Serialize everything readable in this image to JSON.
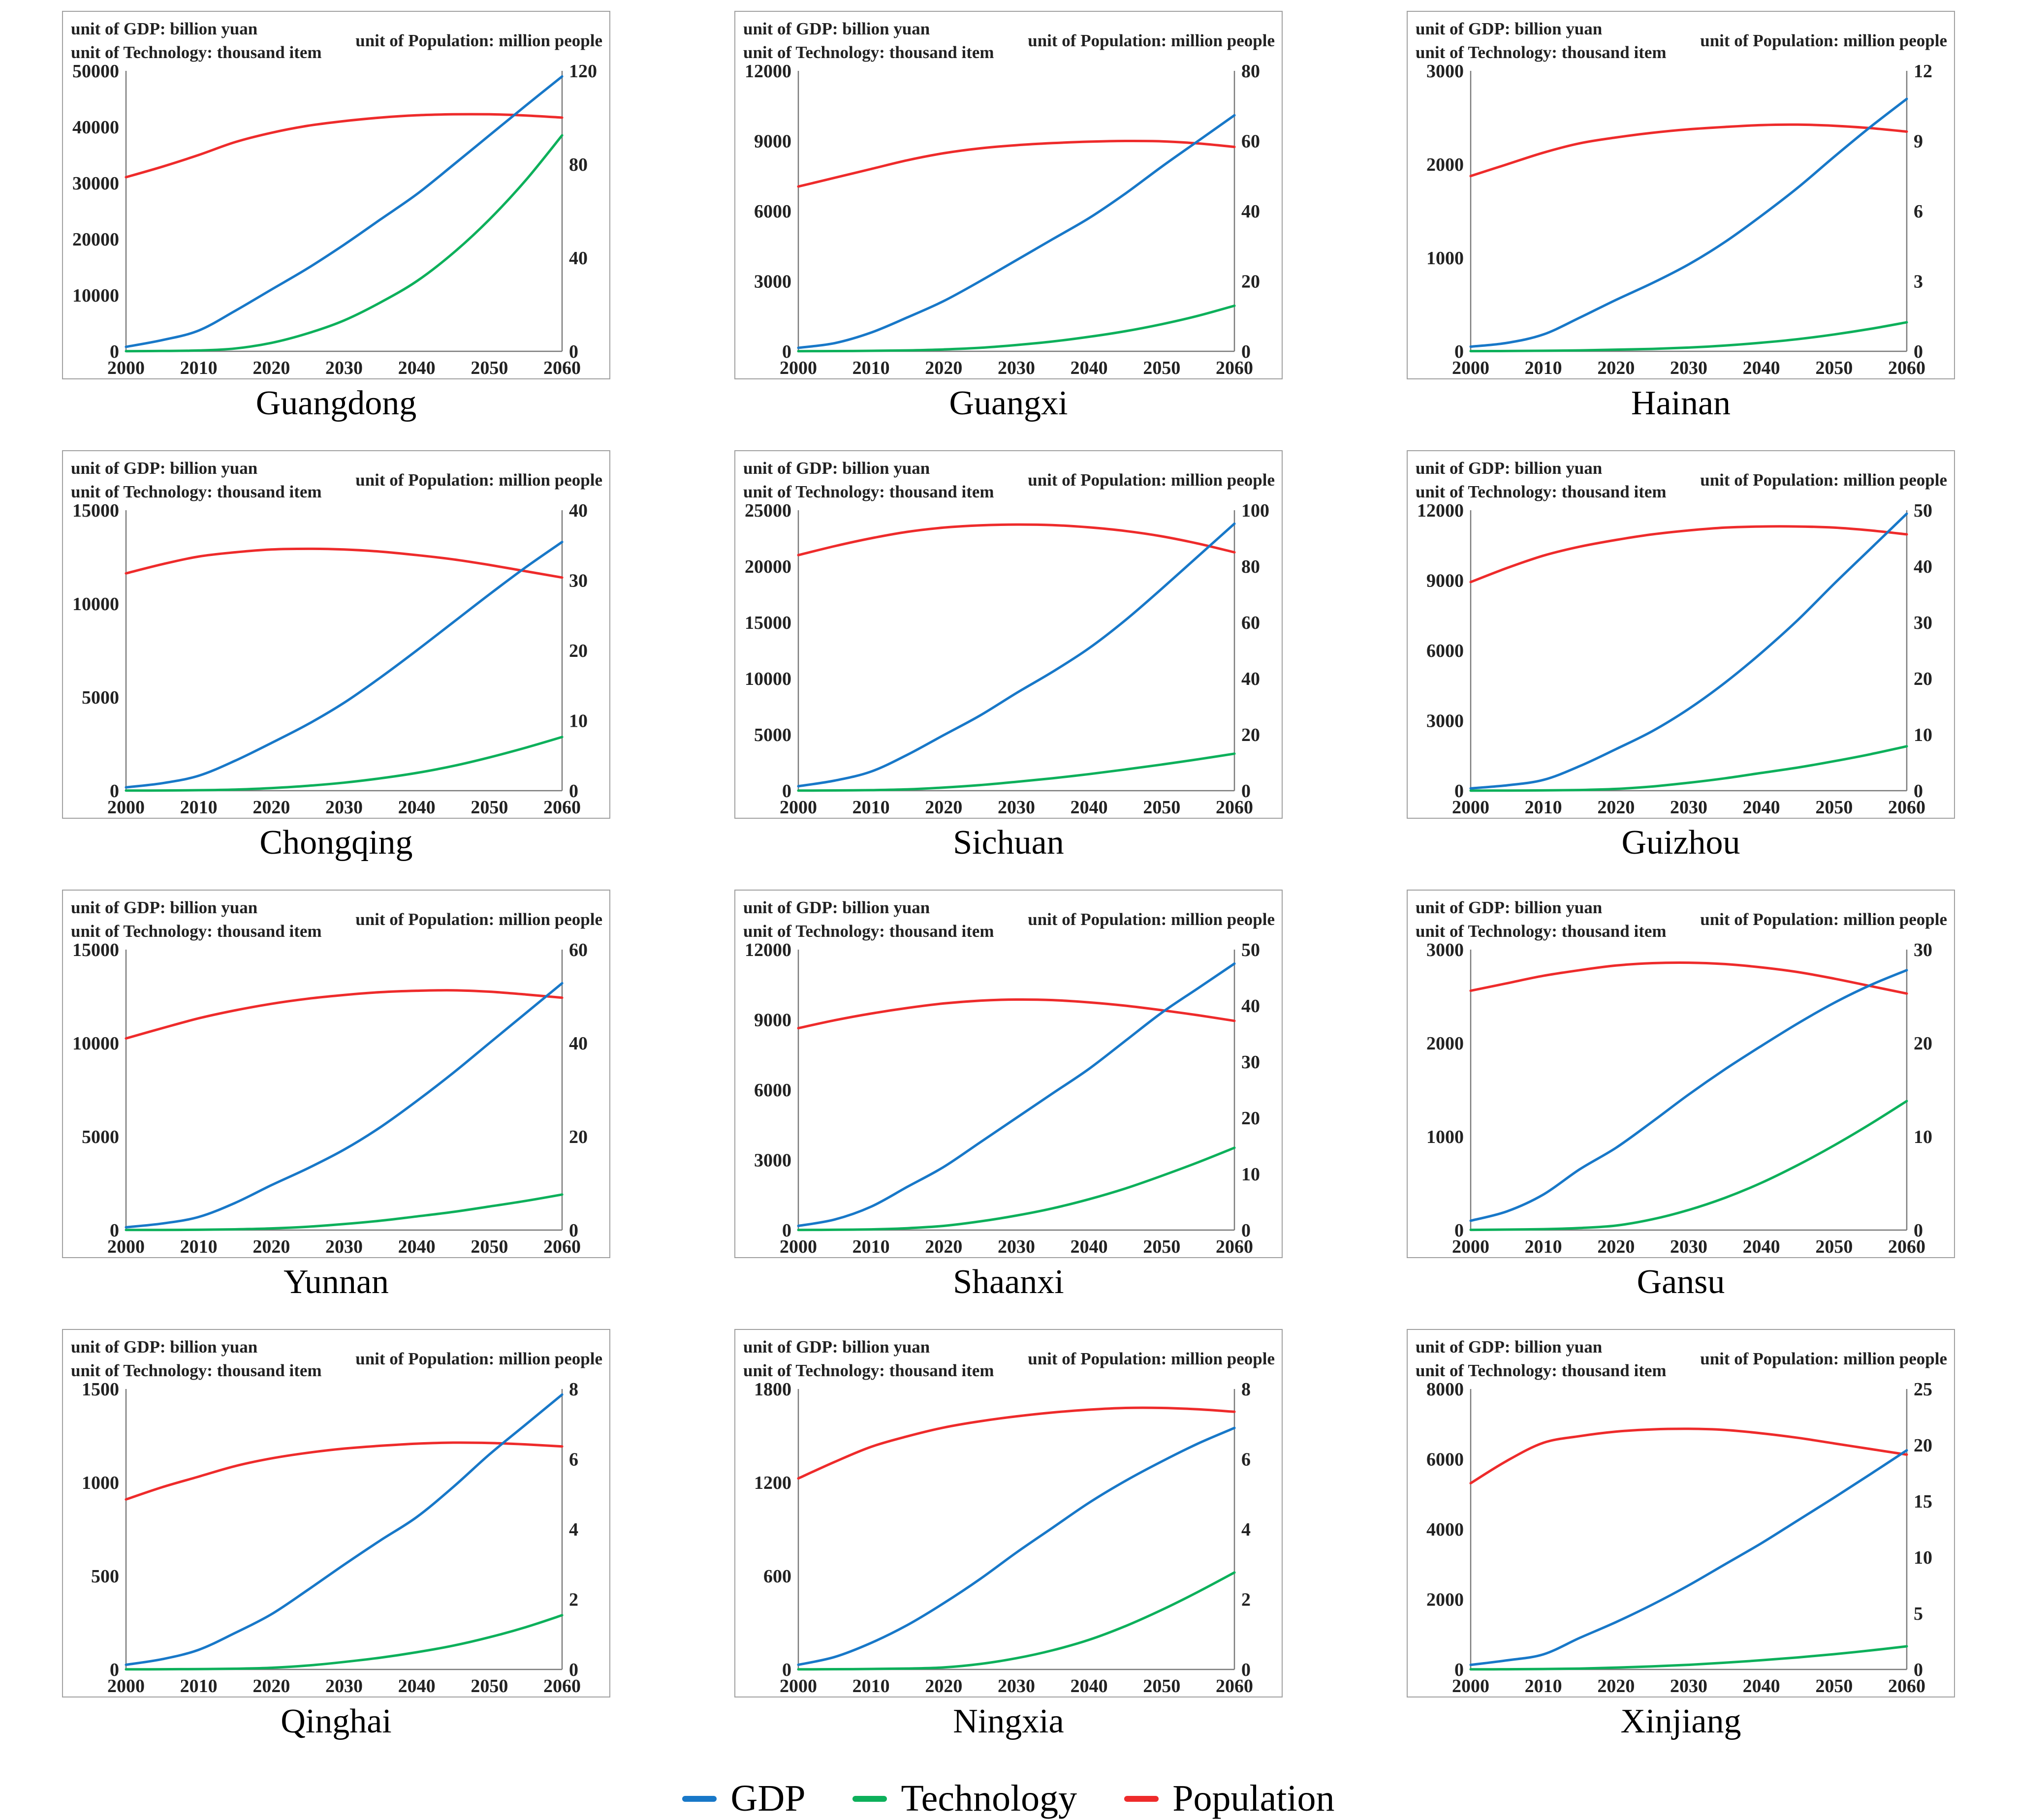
{
  "figure": {
    "description": "Simulated GDP, Technology and Population trajectories 2000-2060 for twelve Chinese provinces"
  },
  "units": {
    "gdp": "unit of GDP: billion yuan",
    "technology": "unit of Technology: thousand item",
    "population": "unit of Population:  million people"
  },
  "colors": {
    "gdp": "#1878c8",
    "technology": "#0db05b",
    "population": "#ee2b2b",
    "axis": "#7a7a7a",
    "box_border": "#a0a0a0",
    "text": "#222222"
  },
  "legend": {
    "items": [
      {
        "label": "GDP",
        "color": "#1878c8"
      },
      {
        "label": "Technology",
        "color": "#0db05b"
      },
      {
        "label": "Population",
        "color": "#ee2b2b"
      }
    ]
  },
  "x_ticks": [
    2000,
    2010,
    2020,
    2030,
    2040,
    2050,
    2060
  ],
  "years_sampled": [
    2000,
    2005,
    2010,
    2015,
    2020,
    2025,
    2030,
    2035,
    2040,
    2045,
    2050,
    2055,
    2060
  ],
  "chart_data": [
    {
      "type": "line",
      "title": "Guangdong",
      "left_axis": {
        "ticks": [
          0,
          10000,
          20000,
          30000,
          40000,
          50000
        ],
        "max": 50000
      },
      "right_axis": {
        "ticks": [
          0,
          40,
          80,
          120
        ],
        "max": 120
      },
      "series": {
        "GDP": [
          800,
          2000,
          3700,
          7200,
          11000,
          14800,
          19000,
          23500,
          28000,
          33200,
          38500,
          43800,
          49000
        ],
        "Technology": [
          30,
          60,
          150,
          500,
          1500,
          3200,
          5500,
          8700,
          12500,
          17500,
          23500,
          30500,
          38500
        ],
        "Population": [
          74.5,
          79,
          84,
          89.5,
          93.5,
          96.5,
          98.5,
          100,
          101,
          101.4,
          101.4,
          100.9,
          100
        ]
      }
    },
    {
      "type": "line",
      "title": "Guangxi",
      "left_axis": {
        "ticks": [
          0,
          3000,
          6000,
          9000,
          12000
        ],
        "max": 12000
      },
      "right_axis": {
        "ticks": [
          0,
          20,
          40,
          60,
          80
        ],
        "max": 80
      },
      "series": {
        "GDP": [
          150,
          350,
          800,
          1450,
          2150,
          3000,
          3900,
          4800,
          5700,
          6750,
          7900,
          9000,
          10100
        ],
        "Technology": [
          5,
          10,
          20,
          40,
          80,
          150,
          270,
          420,
          620,
          860,
          1160,
          1520,
          1950
        ],
        "Population": [
          47,
          49.5,
          52,
          54.5,
          56.5,
          57.9,
          58.8,
          59.4,
          59.8,
          60,
          59.9,
          59.3,
          58.3
        ]
      }
    },
    {
      "type": "line",
      "title": "Hainan",
      "left_axis": {
        "ticks": [
          0,
          1000,
          2000,
          3000
        ],
        "max": 3000
      },
      "right_axis": {
        "ticks": [
          0,
          3,
          6,
          9,
          12
        ],
        "max": 12
      },
      "series": {
        "GDP": [
          50,
          90,
          180,
          360,
          550,
          730,
          930,
          1170,
          1450,
          1750,
          2080,
          2400,
          2700
        ],
        "Technology": [
          2,
          3,
          6,
          10,
          18,
          26,
          40,
          62,
          92,
          130,
          180,
          240,
          310
        ],
        "Population": [
          7.5,
          8.0,
          8.5,
          8.9,
          9.15,
          9.35,
          9.5,
          9.6,
          9.68,
          9.7,
          9.65,
          9.55,
          9.4
        ]
      }
    },
    {
      "type": "line",
      "title": "Chongqing",
      "left_axis": {
        "ticks": [
          0,
          5000,
          10000,
          15000
        ],
        "max": 15000
      },
      "right_axis": {
        "ticks": [
          0,
          10,
          20,
          30,
          40
        ],
        "max": 40
      },
      "series": {
        "GDP": [
          180,
          400,
          800,
          1600,
          2550,
          3550,
          4700,
          6050,
          7500,
          9000,
          10500,
          11950,
          13300
        ],
        "Technology": [
          5,
          10,
          25,
          60,
          140,
          260,
          430,
          660,
          950,
          1320,
          1780,
          2300,
          2870
        ],
        "Population": [
          31,
          32.3,
          33.4,
          34,
          34.4,
          34.5,
          34.4,
          34.1,
          33.6,
          33,
          32.2,
          31.3,
          30.4
        ]
      }
    },
    {
      "type": "line",
      "title": "Sichuan",
      "left_axis": {
        "ticks": [
          0,
          5000,
          10000,
          15000,
          20000,
          25000
        ],
        "max": 25000
      },
      "right_axis": {
        "ticks": [
          0,
          20,
          40,
          60,
          80,
          100
        ],
        "max": 100
      },
      "series": {
        "GDP": [
          400,
          900,
          1700,
          3200,
          4950,
          6700,
          8700,
          10600,
          12700,
          15200,
          18000,
          20900,
          23800
        ],
        "Technology": [
          10,
          20,
          50,
          120,
          280,
          500,
          790,
          1110,
          1480,
          1890,
          2330,
          2800,
          3300
        ],
        "Population": [
          84,
          87.2,
          90,
          92.3,
          93.8,
          94.6,
          94.9,
          94.7,
          93.9,
          92.6,
          90.7,
          88.1,
          85
        ]
      }
    },
    {
      "type": "line",
      "title": "Guizhou",
      "left_axis": {
        "ticks": [
          0,
          3000,
          6000,
          9000,
          12000
        ],
        "max": 12000
      },
      "right_axis": {
        "ticks": [
          0,
          10,
          20,
          30,
          40,
          50
        ],
        "max": 50
      },
      "series": {
        "GDP": [
          100,
          230,
          460,
          1050,
          1780,
          2550,
          3500,
          4620,
          5900,
          7300,
          8850,
          10350,
          11850
        ],
        "Technology": [
          3,
          6,
          12,
          30,
          75,
          180,
          340,
          530,
          760,
          990,
          1260,
          1560,
          1900
        ],
        "Population": [
          37.2,
          39.7,
          41.9,
          43.5,
          44.7,
          45.7,
          46.4,
          46.9,
          47.1,
          47.1,
          46.9,
          46.4,
          45.7
        ]
      }
    },
    {
      "type": "line",
      "title": "Yunnan",
      "left_axis": {
        "ticks": [
          0,
          5000,
          10000,
          15000
        ],
        "max": 15000
      },
      "right_axis": {
        "ticks": [
          0,
          20,
          40,
          60
        ],
        "max": 60
      },
      "series": {
        "GDP": [
          150,
          350,
          700,
          1450,
          2400,
          3300,
          4300,
          5500,
          6900,
          8400,
          10000,
          11600,
          13200
        ],
        "Technology": [
          4,
          8,
          15,
          40,
          90,
          180,
          320,
          500,
          730,
          970,
          1260,
          1560,
          1900
        ],
        "Population": [
          41,
          43.2,
          45.3,
          47,
          48.4,
          49.5,
          50.3,
          50.9,
          51.2,
          51.3,
          51,
          50.4,
          49.7
        ]
      }
    },
    {
      "type": "line",
      "title": "Shaanxi",
      "left_axis": {
        "ticks": [
          0,
          3000,
          6000,
          9000,
          12000
        ],
        "max": 12000
      },
      "right_axis": {
        "ticks": [
          0,
          10,
          20,
          30,
          40,
          50
        ],
        "max": 50
      },
      "series": {
        "GDP": [
          180,
          450,
          1000,
          1850,
          2700,
          3750,
          4800,
          5850,
          6900,
          8100,
          9300,
          10350,
          11400
        ],
        "Technology": [
          5,
          12,
          30,
          80,
          180,
          370,
          620,
          930,
          1320,
          1780,
          2320,
          2900,
          3520
        ],
        "Population": [
          36,
          37.4,
          38.6,
          39.6,
          40.4,
          40.9,
          41.1,
          41,
          40.6,
          40,
          39.2,
          38.3,
          37.3
        ]
      }
    },
    {
      "type": "line",
      "title": "Gansu",
      "left_axis": {
        "ticks": [
          0,
          1000,
          2000,
          3000
        ],
        "max": 3000
      },
      "right_axis": {
        "ticks": [
          0,
          10,
          20,
          30
        ],
        "max": 30
      },
      "series": {
        "GDP": [
          100,
          200,
          380,
          650,
          880,
          1160,
          1450,
          1720,
          1970,
          2210,
          2430,
          2620,
          2780
        ],
        "Technology": [
          2,
          5,
          10,
          22,
          48,
          115,
          215,
          345,
          505,
          695,
          905,
          1135,
          1380
        ],
        "Population": [
          25.6,
          26.4,
          27.2,
          27.8,
          28.3,
          28.55,
          28.6,
          28.45,
          28.1,
          27.6,
          26.9,
          26.1,
          25.3
        ]
      }
    },
    {
      "type": "line",
      "title": "Qinghai",
      "left_axis": {
        "ticks": [
          0,
          500,
          1000,
          1500
        ],
        "max": 1500
      },
      "right_axis": {
        "ticks": [
          0,
          2,
          4,
          6,
          8
        ],
        "max": 8
      },
      "series": {
        "GDP": [
          25,
          55,
          105,
          195,
          295,
          425,
          560,
          690,
          815,
          975,
          1150,
          1310,
          1470
        ],
        "Technology": [
          0.5,
          1,
          2,
          4,
          9,
          21,
          40,
          63,
          92,
          127,
          172,
          226,
          290
        ],
        "Population": [
          4.85,
          5.2,
          5.5,
          5.8,
          6.02,
          6.18,
          6.3,
          6.38,
          6.44,
          6.47,
          6.46,
          6.42,
          6.36
        ]
      }
    },
    {
      "type": "line",
      "title": "Ningxia",
      "left_axis": {
        "ticks": [
          0,
          600,
          1200,
          1800
        ],
        "max": 1800
      },
      "right_axis": {
        "ticks": [
          0,
          2,
          4,
          6,
          8
        ],
        "max": 8
      },
      "series": {
        "GDP": [
          30,
          80,
          170,
          285,
          425,
          580,
          750,
          910,
          1070,
          1210,
          1335,
          1450,
          1550
        ],
        "Technology": [
          0.5,
          1.5,
          3,
          6,
          13,
          35,
          72,
          123,
          190,
          278,
          382,
          498,
          622
        ],
        "Population": [
          5.45,
          5.92,
          6.35,
          6.65,
          6.9,
          7.08,
          7.22,
          7.33,
          7.41,
          7.46,
          7.46,
          7.42,
          7.35
        ]
      }
    },
    {
      "type": "line",
      "title": "Xinjiang",
      "left_axis": {
        "ticks": [
          0,
          2000,
          4000,
          6000,
          8000
        ],
        "max": 8000
      },
      "right_axis": {
        "ticks": [
          0,
          5,
          10,
          15,
          20,
          25
        ],
        "max": 25
      },
      "series": {
        "GDP": [
          130,
          260,
          430,
          900,
          1350,
          1850,
          2400,
          3000,
          3600,
          4250,
          4900,
          5570,
          6250
        ],
        "Technology": [
          3,
          6,
          12,
          25,
          52,
          88,
          132,
          192,
          262,
          342,
          435,
          542,
          660
        ],
        "Population": [
          16.6,
          18.6,
          20.2,
          20.8,
          21.2,
          21.4,
          21.45,
          21.35,
          21.05,
          20.65,
          20.15,
          19.65,
          19.15
        ]
      }
    }
  ]
}
